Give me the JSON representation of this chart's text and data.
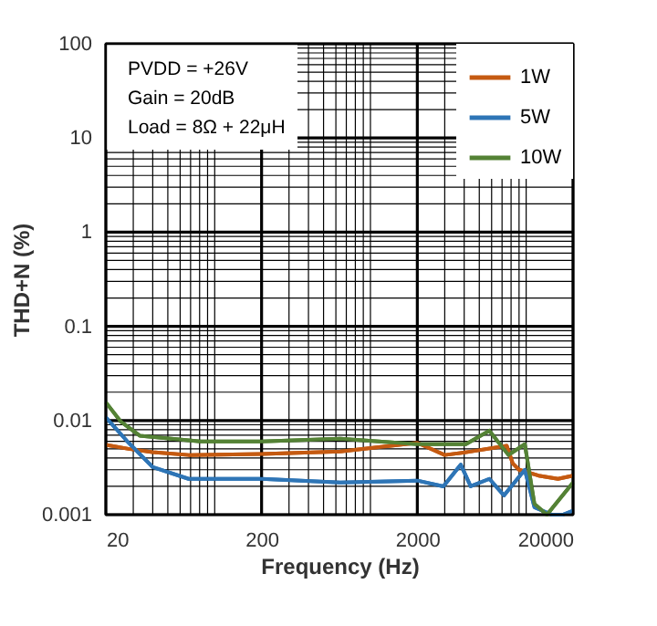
{
  "chart_data": {
    "type": "line",
    "xlabel": "Frequency (Hz)",
    "ylabel": "THD+N (%)",
    "annotations": [
      "PVDD = +26V",
      "Gain = 20dB",
      "Load = 8Ω + 22μH"
    ],
    "log": "xy",
    "grid": true,
    "legend": "top right",
    "line_style": "solid",
    "marker": "none",
    "xlim": [
      20,
      20000
    ],
    "ylim": [
      0.001,
      100
    ],
    "xticks": [
      20,
      {
        "value": 30,
        "label": null
      },
      {
        "value": 40,
        "label": null
      },
      {
        "value": 50,
        "label": null
      },
      {
        "value": 60,
        "label": null
      },
      {
        "value": 70,
        "label": null
      },
      {
        "value": 80,
        "label": null
      },
      {
        "value": 90,
        "label": null
      },
      {
        "value": 100,
        "label": null
      },
      200,
      {
        "value": 300,
        "label": null
      },
      {
        "value": 400,
        "label": null
      },
      {
        "value": 500,
        "label": null
      },
      {
        "value": 600,
        "label": null
      },
      {
        "value": 700,
        "label": null
      },
      {
        "value": 800,
        "label": null
      },
      {
        "value": 900,
        "label": null
      },
      {
        "value": 1000,
        "label": null
      },
      2000,
      {
        "value": 3000,
        "label": null
      },
      {
        "value": 4000,
        "label": null
      },
      {
        "value": 5000,
        "label": null
      },
      {
        "value": 6000,
        "label": null
      },
      {
        "value": 7000,
        "label": null
      },
      {
        "value": 8000,
        "label": null
      },
      {
        "value": 9000,
        "label": null
      },
      {
        "value": 10000,
        "label": null
      },
      20000
    ],
    "yticks": [
      0.001,
      {
        "value": 0.002,
        "label": null
      },
      {
        "value": 0.003,
        "label": null
      },
      {
        "value": 0.004,
        "label": null
      },
      {
        "value": 0.005,
        "label": null
      },
      {
        "value": 0.006,
        "label": null
      },
      {
        "value": 0.007,
        "label": null
      },
      {
        "value": 0.008,
        "label": null
      },
      {
        "value": 0.009,
        "label": null
      },
      0.01,
      {
        "value": 0.02,
        "label": null
      },
      {
        "value": 0.03,
        "label": null
      },
      {
        "value": 0.04,
        "label": null
      },
      {
        "value": 0.05,
        "label": null
      },
      {
        "value": 0.06,
        "label": null
      },
      {
        "value": 0.07,
        "label": null
      },
      {
        "value": 0.08,
        "label": null
      },
      {
        "value": 0.09,
        "label": null
      },
      0.1,
      {
        "value": 0.2,
        "label": null
      },
      {
        "value": 0.3,
        "label": null
      },
      {
        "value": 0.4,
        "label": null
      },
      {
        "value": 0.5,
        "label": null
      },
      {
        "value": 0.6,
        "label": null
      },
      {
        "value": 0.7,
        "label": null
      },
      {
        "value": 0.8,
        "label": null
      },
      {
        "value": 0.9,
        "label": null
      },
      1,
      {
        "value": 2,
        "label": null
      },
      {
        "value": 3,
        "label": null
      },
      {
        "value": 4,
        "label": null
      },
      {
        "value": 5,
        "label": null
      },
      {
        "value": 6,
        "label": null
      },
      {
        "value": 7,
        "label": null
      },
      {
        "value": 8,
        "label": null
      },
      {
        "value": 9,
        "label": null
      },
      10,
      {
        "value": 20,
        "label": null
      },
      {
        "value": 30,
        "label": null
      },
      {
        "value": 40,
        "label": null
      },
      {
        "value": 50,
        "label": null
      },
      {
        "value": 60,
        "label": null
      },
      {
        "value": 70,
        "label": null
      },
      {
        "value": 80,
        "label": null
      },
      {
        "value": 90,
        "label": null
      },
      100
    ],
    "series": [
      {
        "name": "1W",
        "color": "#c55a11",
        "x": [
          20,
          28,
          40,
          68,
          200,
          640,
          2000,
          3000,
          4100,
          7500,
          8200,
          9000,
          12000,
          16000,
          20000
        ],
        "values": [
          0.0055,
          0.005,
          0.0046,
          0.0043,
          0.0044,
          0.0047,
          0.0058,
          0.0043,
          0.0046,
          0.0054,
          0.0035,
          0.003,
          0.0026,
          0.0024,
          0.0026
        ]
      },
      {
        "name": "5W",
        "color": "#2e75b6",
        "x": [
          20,
          28,
          40,
          68,
          200,
          640,
          2000,
          2940,
          3800,
          4400,
          5800,
          7200,
          9800,
          11300,
          14600,
          17200,
          20000
        ],
        "values": [
          0.0108,
          0.0058,
          0.0032,
          0.0024,
          0.0024,
          0.0022,
          0.0023,
          0.002,
          0.0034,
          0.002,
          0.0024,
          0.0016,
          0.003,
          0.0012,
          0.001,
          0.001,
          0.0011
        ]
      },
      {
        "name": "10W",
        "color": "#548235",
        "x": [
          20,
          25,
          33,
          81,
          200,
          640,
          2000,
          4100,
          5800,
          7700,
          9800,
          11300,
          13600,
          20000
        ],
        "values": [
          0.0156,
          0.0097,
          0.0069,
          0.006,
          0.006,
          0.0064,
          0.0056,
          0.0056,
          0.0078,
          0.0043,
          0.0056,
          0.0013,
          0.001,
          0.0022
        ]
      }
    ]
  }
}
